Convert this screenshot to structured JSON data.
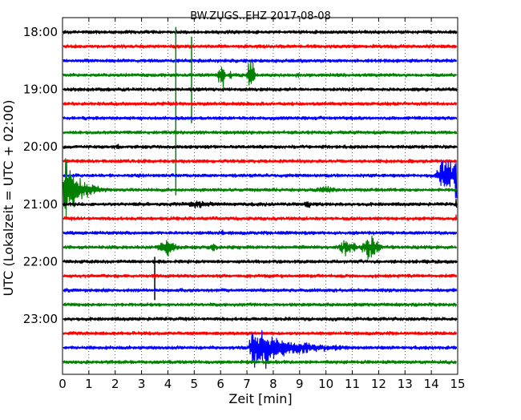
{
  "chart_data": {
    "type": "line",
    "title": "BW.ZUGS..EHZ 2017-08-08",
    "xlabel": "Zeit  [min]",
    "ylabel": "UTC (Lokalzeit = UTC + 02:00)",
    "xlim": [
      0,
      15
    ],
    "x_ticks": [
      "0",
      "1",
      "2",
      "3",
      "4",
      "5",
      "6",
      "7",
      "8",
      "9",
      "10",
      "11",
      "12",
      "13",
      "14",
      "15"
    ],
    "y_tick_labels": [
      "18:00",
      "19:00",
      "20:00",
      "21:00",
      "22:00",
      "23:00"
    ],
    "trace_interval_min": 15,
    "grid": "vertical dotted",
    "color_cycle": [
      "#000000",
      "#ff0000",
      "#0000ff",
      "#008000"
    ],
    "traces": [
      {
        "start": "18:00",
        "color": "#000000"
      },
      {
        "start": "18:15",
        "color": "#ff0000"
      },
      {
        "start": "18:30",
        "color": "#0000ff"
      },
      {
        "start": "18:45",
        "color": "#008000"
      },
      {
        "start": "19:00",
        "color": "#000000"
      },
      {
        "start": "19:15",
        "color": "#ff0000"
      },
      {
        "start": "19:30",
        "color": "#0000ff"
      },
      {
        "start": "19:45",
        "color": "#008000"
      },
      {
        "start": "20:00",
        "color": "#000000"
      },
      {
        "start": "20:15",
        "color": "#ff0000"
      },
      {
        "start": "20:30",
        "color": "#0000ff"
      },
      {
        "start": "20:45",
        "color": "#008000"
      },
      {
        "start": "21:00",
        "color": "#000000"
      },
      {
        "start": "21:15",
        "color": "#ff0000"
      },
      {
        "start": "21:30",
        "color": "#0000ff"
      },
      {
        "start": "21:45",
        "color": "#008000"
      },
      {
        "start": "22:00",
        "color": "#000000"
      },
      {
        "start": "22:15",
        "color": "#ff0000"
      },
      {
        "start": "22:30",
        "color": "#0000ff"
      },
      {
        "start": "22:45",
        "color": "#008000"
      },
      {
        "start": "23:00",
        "color": "#000000"
      },
      {
        "start": "23:15",
        "color": "#ff0000"
      },
      {
        "start": "23:30",
        "color": "#0000ff"
      },
      {
        "start": "23:45",
        "color": "#008000"
      }
    ],
    "events": [
      {
        "trace": 3,
        "t": 4.3,
        "peak": 60,
        "type": "spike-up",
        "down": 150
      },
      {
        "trace": 3,
        "t": 4.9,
        "peak": 48,
        "type": "spike-up",
        "down": 60
      },
      {
        "trace": 3,
        "t": 5.9,
        "peak": 25,
        "type": "burst",
        "dur": 0.3
      },
      {
        "trace": 3,
        "t": 6.3,
        "peak": 10,
        "type": "burst",
        "dur": 0.15
      },
      {
        "trace": 3,
        "t": 7.0,
        "peak": 32,
        "type": "burst",
        "dur": 0.3
      },
      {
        "trace": 3,
        "t": 8.8,
        "peak": 6,
        "type": "burst",
        "dur": 0.25
      },
      {
        "trace": 8,
        "t": 2.05,
        "peak": 10,
        "type": "burst",
        "dur": 0.1
      },
      {
        "trace": 10,
        "t": 14.2,
        "peak": 30,
        "type": "burst",
        "dur": 0.8
      },
      {
        "trace": 10,
        "t": 14.85,
        "peak": 55,
        "type": "burst",
        "dur": 0.15
      },
      {
        "trace": 11,
        "t": 0.0,
        "peak": 58,
        "type": "decay",
        "dur": 2.4
      },
      {
        "trace": 11,
        "t": 9.5,
        "peak": 6,
        "type": "burst",
        "dur": 1.0
      },
      {
        "trace": 12,
        "t": 4.4,
        "peak": 7,
        "type": "burst",
        "dur": 1.5
      },
      {
        "trace": 12,
        "t": 9.0,
        "peak": 6,
        "type": "burst",
        "dur": 0.6
      },
      {
        "trace": 12,
        "t": 14.9,
        "peak": 15,
        "type": "burst",
        "dur": 0.1
      },
      {
        "trace": 13,
        "t": 4.2,
        "peak": 5,
        "type": "burst",
        "dur": 0.3
      },
      {
        "trace": 13,
        "t": 14.9,
        "peak": 10,
        "type": "burst",
        "dur": 0.1
      },
      {
        "trace": 14,
        "t": 5.9,
        "peak": 6,
        "type": "burst",
        "dur": 0.3
      },
      {
        "trace": 14,
        "t": 8.2,
        "peak": 5,
        "type": "burst",
        "dur": 0.3
      },
      {
        "trace": 15,
        "t": 3.6,
        "peak": 16,
        "type": "burst",
        "dur": 0.8
      },
      {
        "trace": 15,
        "t": 5.5,
        "peak": 8,
        "type": "burst",
        "dur": 0.4
      },
      {
        "trace": 15,
        "t": 10.4,
        "peak": 14,
        "type": "burst",
        "dur": 0.8
      },
      {
        "trace": 15,
        "t": 11.3,
        "peak": 20,
        "type": "burst",
        "dur": 0.8
      },
      {
        "trace": 16,
        "t": 3.5,
        "peak": 6,
        "type": "spike-up",
        "down": 48
      },
      {
        "trace": 22,
        "t": 7.1,
        "peak": 32,
        "type": "decay",
        "dur": 6.5
      },
      {
        "trace": 22,
        "t": 7.6,
        "peak": 34,
        "type": "burst",
        "dur": 0.3
      }
    ]
  }
}
